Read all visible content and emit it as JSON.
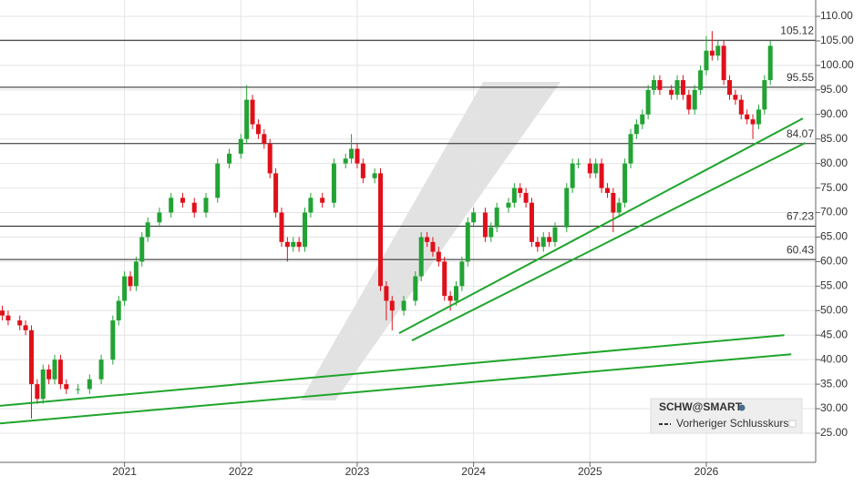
{
  "chart_data": {
    "type": "candlestick",
    "xlim": [
      2019.93,
      2026.94
    ],
    "ylim": [
      19.06,
      113.34
    ],
    "xticks": [
      2021,
      2022,
      2023,
      2024,
      2025,
      2026
    ],
    "yticks": [
      {
        "value": 25,
        "label": "25.00"
      },
      {
        "value": 30,
        "label": "30.00"
      },
      {
        "value": 35,
        "label": "35.00"
      },
      {
        "value": 40,
        "label": "40.00"
      },
      {
        "value": 45,
        "label": "45.00"
      },
      {
        "value": 50,
        "label": "50.00"
      },
      {
        "value": 55,
        "label": "55.00"
      },
      {
        "value": 60,
        "label": "60.00"
      },
      {
        "value": 65,
        "label": "65.00"
      },
      {
        "value": 70,
        "label": "70.00"
      },
      {
        "value": 75,
        "label": "75.00"
      },
      {
        "value": 80,
        "label": "80.00"
      },
      {
        "value": 85,
        "label": "85.00"
      },
      {
        "value": 90,
        "label": "90.00"
      },
      {
        "value": 95,
        "label": "95.00"
      },
      {
        "value": 100,
        "label": "100.00"
      },
      {
        "value": 105,
        "label": "105.00"
      },
      {
        "value": 110,
        "label": "110.00"
      }
    ],
    "grid": true,
    "up_color": "#22a334",
    "down_color": "#e0101a",
    "level_color": "#222222",
    "trend_color": "#1fa52c",
    "x": [
      2019.95,
      2020.0,
      2020.1,
      2020.15,
      2020.2,
      2020.25,
      2020.3,
      2020.35,
      2020.4,
      2020.45,
      2020.5,
      2020.6,
      2020.7,
      2020.8,
      2020.9,
      2020.95,
      2021.0,
      2021.05,
      2021.1,
      2021.15,
      2021.2,
      2021.3,
      2021.4,
      2021.5,
      2021.6,
      2021.7,
      2021.8,
      2021.9,
      2022.0,
      2022.05,
      2022.1,
      2022.15,
      2022.2,
      2022.25,
      2022.3,
      2022.35,
      2022.4,
      2022.45,
      2022.5,
      2022.55,
      2022.6,
      2022.7,
      2022.8,
      2022.9,
      2022.95,
      2023.0,
      2023.05,
      2023.15,
      2023.2,
      2023.25,
      2023.3,
      2023.4,
      2023.5,
      2023.55,
      2023.6,
      2023.65,
      2023.7,
      2023.75,
      2023.8,
      2023.85,
      2023.9,
      2023.95,
      2024.0,
      2024.1,
      2024.15,
      2024.2,
      2024.3,
      2024.35,
      2024.4,
      2024.45,
      2024.5,
      2024.55,
      2024.6,
      2024.65,
      2024.7,
      2024.8,
      2024.85,
      2024.9,
      2025.0,
      2025.05,
      2025.1,
      2025.15,
      2025.2,
      2025.25,
      2025.3,
      2025.35,
      2025.4,
      2025.45,
      2025.5,
      2025.55,
      2025.6,
      2025.7,
      2025.75,
      2025.8,
      2025.85,
      2025.9,
      2025.95,
      2026.0,
      2026.05,
      2026.1,
      2026.15,
      2026.2,
      2026.25,
      2026.3,
      2026.35,
      2026.4,
      2026.45,
      2026.5,
      2026.55
    ],
    "open": [
      50,
      49,
      48,
      47,
      46,
      35,
      32,
      38,
      36,
      40,
      35,
      34,
      34,
      36,
      40,
      48,
      52,
      57,
      55,
      60,
      65,
      68,
      70,
      73,
      72,
      70,
      73,
      80,
      82,
      85,
      93,
      88,
      86,
      84,
      78,
      70,
      64,
      63,
      64,
      63,
      70,
      73,
      72,
      80,
      81,
      83,
      80,
      77,
      78,
      55,
      52,
      50,
      52,
      57,
      65,
      64,
      62,
      60,
      53,
      52,
      55,
      60,
      68,
      70,
      65,
      67,
      71,
      72,
      75,
      74,
      72,
      64,
      63,
      65,
      64,
      67,
      75,
      80,
      80,
      78,
      80,
      75,
      74,
      70,
      72,
      80,
      86,
      88,
      90,
      95,
      97,
      95,
      94,
      97,
      94,
      91,
      95,
      99,
      103,
      102,
      104,
      97,
      94,
      93,
      90,
      89,
      88,
      91,
      97
    ],
    "high": [
      51,
      50,
      49,
      48,
      47,
      36,
      39,
      39,
      41,
      41,
      36,
      35,
      37,
      41,
      49,
      53,
      58,
      58,
      61,
      66,
      69,
      71,
      74,
      74,
      73,
      74,
      81,
      83,
      86,
      96,
      94,
      89,
      87,
      85,
      79,
      71,
      65,
      65,
      65,
      71,
      74,
      74,
      81,
      82,
      86,
      84,
      81,
      79,
      79,
      56,
      53,
      53,
      58,
      66,
      66,
      65,
      63,
      61,
      54,
      56,
      61,
      69,
      71,
      71,
      68,
      72,
      73,
      76,
      76,
      75,
      73,
      65,
      66,
      66,
      68,
      76,
      81,
      81,
      81,
      81,
      81,
      76,
      75,
      73,
      81,
      87,
      89,
      91,
      96,
      98,
      98,
      96,
      98,
      98,
      95,
      96,
      100,
      106,
      107,
      105,
      105,
      98,
      95,
      94,
      91,
      90,
      92,
      98,
      105
    ],
    "low": [
      48,
      47,
      46,
      45,
      28,
      31,
      31,
      35,
      35,
      34,
      33,
      33,
      33,
      35,
      39,
      47,
      51,
      54,
      54,
      59,
      64,
      67,
      69,
      71,
      69,
      69,
      72,
      79,
      81,
      84,
      87,
      85,
      83,
      77,
      69,
      63,
      60,
      62,
      62,
      62,
      69,
      71,
      71,
      79,
      80,
      79,
      76,
      76,
      54,
      48,
      46,
      49,
      51,
      56,
      63,
      61,
      59,
      52,
      50,
      51,
      54,
      59,
      67,
      64,
      64,
      66,
      70,
      71,
      73,
      71,
      63,
      62,
      62,
      63,
      63,
      66,
      74,
      79,
      77,
      77,
      74,
      73,
      66,
      69,
      71,
      79,
      85,
      87,
      89,
      94,
      94,
      93,
      93,
      93,
      90,
      90,
      94,
      98,
      101,
      101,
      96,
      93,
      92,
      89,
      88,
      85,
      87,
      90,
      96
    ],
    "close": [
      49,
      48,
      47,
      46,
      35,
      32,
      38,
      36,
      40,
      35,
      34,
      34,
      36,
      40,
      48,
      52,
      57,
      55,
      60,
      65,
      68,
      70,
      73,
      72,
      70,
      73,
      80,
      82,
      85,
      93,
      88,
      86,
      84,
      78,
      70,
      64,
      63,
      64,
      63,
      70,
      73,
      72,
      80,
      81,
      83,
      80,
      77,
      78,
      55,
      52,
      50,
      52,
      57,
      65,
      64,
      62,
      60,
      53,
      52,
      55,
      60,
      68,
      70,
      65,
      67,
      71,
      72,
      75,
      74,
      72,
      64,
      63,
      65,
      64,
      67,
      75,
      80,
      80,
      78,
      80,
      75,
      74,
      70,
      72,
      80,
      86,
      88,
      90,
      95,
      97,
      95,
      94,
      97,
      94,
      91,
      95,
      99,
      103,
      102,
      104,
      97,
      94,
      93,
      90,
      89,
      88,
      91,
      97,
      104
    ],
    "levels": [
      105.12,
      95.55,
      84.07,
      67.23,
      60.43
    ],
    "trendlines": [
      {
        "x": [
          2019.93,
          2026.67
        ],
        "y": [
          30.6,
          45.0
        ]
      },
      {
        "x": [
          2019.93,
          2026.73
        ],
        "y": [
          27.0,
          41.1
        ]
      },
      {
        "x": [
          2023.36,
          2026.83
        ],
        "y": [
          45.4,
          89.2
        ]
      },
      {
        "x": [
          2023.47,
          2026.85
        ],
        "y": [
          43.9,
          84.2
        ]
      }
    ],
    "legend": {
      "title": "SCHW@SMART",
      "items": [
        "Vorheriger Schlusskurs"
      ],
      "position": "lower right"
    }
  }
}
